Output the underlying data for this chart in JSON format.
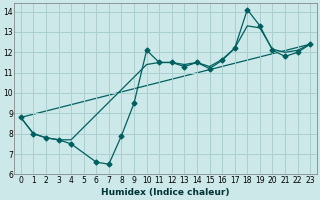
{
  "xlabel": "Humidex (Indice chaleur)",
  "bg_color": "#cce8e8",
  "grid_color": "#aacfcf",
  "line_color": "#006060",
  "xlim": [
    -0.5,
    23.5
  ],
  "ylim": [
    6,
    14.4
  ],
  "xticks": [
    0,
    1,
    2,
    3,
    4,
    5,
    6,
    7,
    8,
    9,
    10,
    11,
    12,
    13,
    14,
    15,
    16,
    17,
    18,
    19,
    20,
    21,
    22,
    23
  ],
  "yticks": [
    6,
    7,
    8,
    9,
    10,
    11,
    12,
    13,
    14
  ],
  "series1_x": [
    0,
    1,
    2,
    3,
    4,
    6,
    7,
    8,
    9,
    10,
    11,
    12,
    13,
    14,
    15,
    16,
    17,
    18,
    19,
    20,
    21,
    22,
    23
  ],
  "series1_y": [
    8.8,
    8.0,
    7.8,
    7.7,
    7.5,
    6.6,
    6.5,
    7.9,
    9.5,
    12.1,
    11.5,
    11.5,
    11.3,
    11.5,
    11.2,
    11.6,
    12.2,
    14.1,
    13.3,
    12.1,
    11.8,
    12.0,
    12.4
  ],
  "series2_x": [
    0,
    1,
    2,
    3,
    4,
    10,
    11,
    12,
    13,
    14,
    15,
    16,
    17,
    18,
    19,
    20,
    21,
    22,
    23
  ],
  "series2_y": [
    8.8,
    8.0,
    7.8,
    7.7,
    7.7,
    11.4,
    11.5,
    11.5,
    11.4,
    11.5,
    11.3,
    11.65,
    12.2,
    13.3,
    13.2,
    12.15,
    12.0,
    12.1,
    12.4
  ],
  "series3_x": [
    0,
    23
  ],
  "series3_y": [
    8.8,
    12.4
  ],
  "tick_fontsize": 5.5,
  "xlabel_fontsize": 6.5
}
